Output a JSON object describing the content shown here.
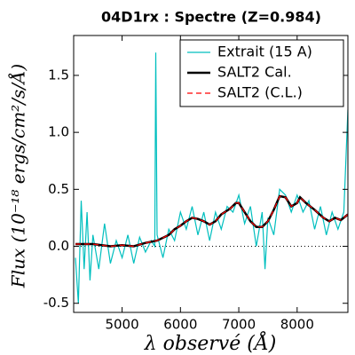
{
  "chart_data": {
    "type": "line",
    "title": "04D1rx : Spectre (Z=0.984)",
    "x_label": "λ observé (Å)",
    "y_label": "Flux (10⁻¹⁸ ergs/cm²/s/Å)",
    "xlim": [
      4170,
      8870
    ],
    "ylim": [
      -0.58,
      1.85
    ],
    "xticks": [
      5000,
      6000,
      7000,
      8000
    ],
    "yticks": [
      -0.5,
      {
        "value": 0,
        "label": "0.0"
      },
      0.5,
      {
        "value": 1,
        "label": "1.0"
      },
      1.5
    ],
    "reference_line": 0,
    "legend": "upper right",
    "series": [
      {
        "name": "Extrait (15 A)",
        "color": "#00bfbf",
        "style": "solid",
        "width": 1.2,
        "x": [
          4200,
          4250,
          4300,
          4350,
          4400,
          4450,
          4500,
          4600,
          4700,
          4800,
          4900,
          5000,
          5100,
          5200,
          5300,
          5400,
          5500,
          5560,
          5577,
          5600,
          5700,
          5800,
          5900,
          6000,
          6100,
          6200,
          6300,
          6400,
          6500,
          6600,
          6700,
          6800,
          6900,
          7000,
          7100,
          7200,
          7300,
          7400,
          7450,
          7500,
          7600,
          7700,
          7800,
          7900,
          8000,
          8100,
          8200,
          8300,
          8400,
          8500,
          8600,
          8700,
          8800,
          8870
        ],
        "values": [
          -0.1,
          -0.5,
          0.4,
          -0.2,
          0.3,
          -0.3,
          0.1,
          -0.2,
          0.2,
          -0.15,
          0.05,
          -0.1,
          0.1,
          -0.15,
          0.08,
          -0.05,
          0.05,
          0.0,
          1.7,
          0.1,
          -0.1,
          0.15,
          0.05,
          0.3,
          0.15,
          0.35,
          0.1,
          0.3,
          0.05,
          0.3,
          0.15,
          0.35,
          0.3,
          0.45,
          0.2,
          0.35,
          0.0,
          0.3,
          -0.2,
          0.25,
          0.1,
          0.5,
          0.45,
          0.3,
          0.45,
          0.3,
          0.4,
          0.15,
          0.35,
          0.1,
          0.3,
          0.15,
          0.3,
          1.2
        ]
      },
      {
        "name": "SALT2 Cal.",
        "color": "#000000",
        "style": "solid",
        "width": 2.5,
        "x": [
          4200,
          4500,
          4800,
          5000,
          5200,
          5400,
          5600,
          5800,
          5900,
          6000,
          6100,
          6200,
          6300,
          6400,
          6500,
          6600,
          6700,
          6850,
          6950,
          7000,
          7100,
          7200,
          7300,
          7400,
          7500,
          7600,
          7700,
          7800,
          7900,
          8000,
          8050,
          8150,
          8300,
          8450,
          8550,
          8650,
          8750,
          8870
        ],
        "values": [
          0.02,
          0.02,
          0.0,
          0.01,
          0.0,
          0.03,
          0.05,
          0.1,
          0.15,
          0.18,
          0.22,
          0.25,
          0.24,
          0.22,
          0.19,
          0.22,
          0.28,
          0.33,
          0.38,
          0.38,
          0.3,
          0.22,
          0.17,
          0.17,
          0.22,
          0.32,
          0.44,
          0.43,
          0.35,
          0.38,
          0.43,
          0.38,
          0.32,
          0.25,
          0.22,
          0.25,
          0.23,
          0.28
        ]
      },
      {
        "name": "SALT2 (C.L.)",
        "color": "#ff0000",
        "style": "dashed",
        "width": 1.2,
        "x": [
          4200,
          4500,
          4800,
          5000,
          5200,
          5400,
          5600,
          5800,
          5900,
          6000,
          6100,
          6200,
          6300,
          6400,
          6500,
          6600,
          6700,
          6850,
          6950,
          7000,
          7100,
          7200,
          7300,
          7400,
          7500,
          7600,
          7700,
          7800,
          7900,
          8000,
          8050,
          8150,
          8300,
          8450,
          8550,
          8650,
          8750,
          8870
        ],
        "values": [
          0.02,
          0.02,
          0.0,
          0.01,
          0.0,
          0.03,
          0.05,
          0.1,
          0.15,
          0.18,
          0.22,
          0.25,
          0.24,
          0.22,
          0.19,
          0.22,
          0.28,
          0.33,
          0.38,
          0.38,
          0.3,
          0.22,
          0.17,
          0.17,
          0.22,
          0.32,
          0.44,
          0.43,
          0.35,
          0.38,
          0.43,
          0.38,
          0.32,
          0.25,
          0.22,
          0.25,
          0.23,
          0.28
        ]
      }
    ]
  }
}
